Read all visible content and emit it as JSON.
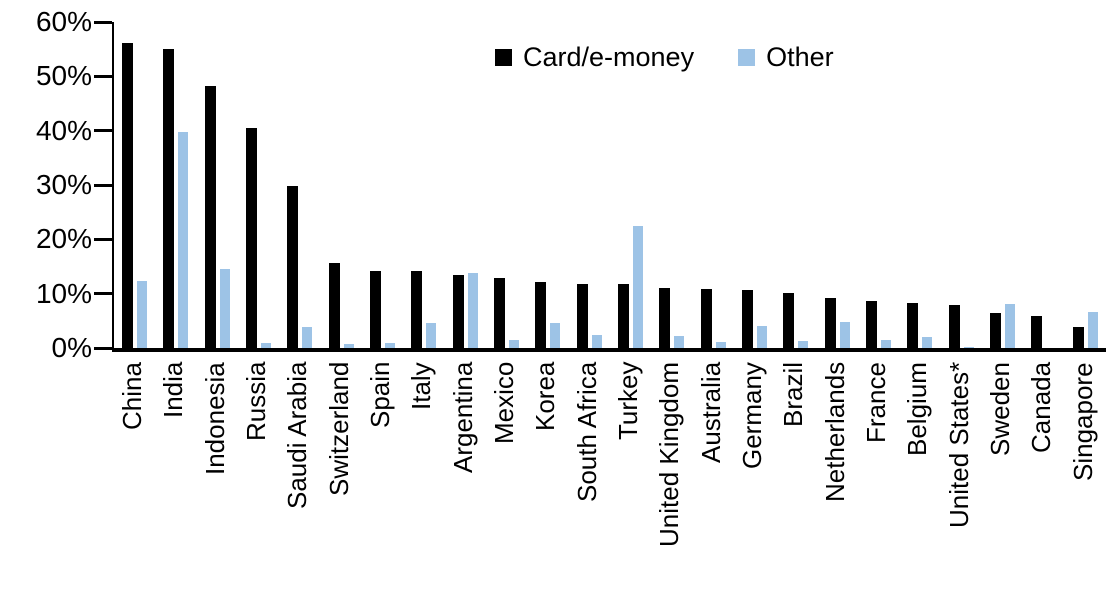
{
  "chart_data": {
    "type": "bar",
    "title": "",
    "categories": [
      "China",
      "India",
      "Indonesia",
      "Russia",
      "Saudi Arabia",
      "Switzerland",
      "Spain",
      "Italy",
      "Argentina",
      "Mexico",
      "Korea",
      "South Africa",
      "Turkey",
      "United Kingdom",
      "Australia",
      "Germany",
      "Brazil",
      "Netherlands",
      "France",
      "Belgium",
      "United States*",
      "Sweden",
      "Canada",
      "Singapore"
    ],
    "series": [
      {
        "name": "Card/e-money",
        "color": "#000000",
        "values": [
          56.2,
          55.1,
          48.2,
          40.5,
          29.9,
          15.6,
          14.2,
          14.1,
          13.4,
          12.9,
          12.2,
          11.8,
          11.7,
          11.1,
          10.8,
          10.6,
          10.1,
          9.2,
          8.6,
          8.2,
          7.9,
          6.5,
          5.9,
          3.8
        ]
      },
      {
        "name": "Other",
        "color": "#9DC3E6",
        "values": [
          12.3,
          39.8,
          14.5,
          0.9,
          3.9,
          0.8,
          1.0,
          4.6,
          13.8,
          1.4,
          4.7,
          2.4,
          22.5,
          2.3,
          1.1,
          4.0,
          1.3,
          4.8,
          1.5,
          2.0,
          0.2,
          8.1,
          0,
          6.6
        ]
      }
    ],
    "xlabel": "",
    "ylabel": "",
    "ylim": [
      0,
      60
    ],
    "ytick_labels": [
      "60%",
      "50%",
      "40%",
      "30%",
      "20%",
      "10%",
      "0%"
    ],
    "grid": false,
    "legend_position": "top-center",
    "axis_color": "#000000",
    "background_color": "#ffffff"
  }
}
